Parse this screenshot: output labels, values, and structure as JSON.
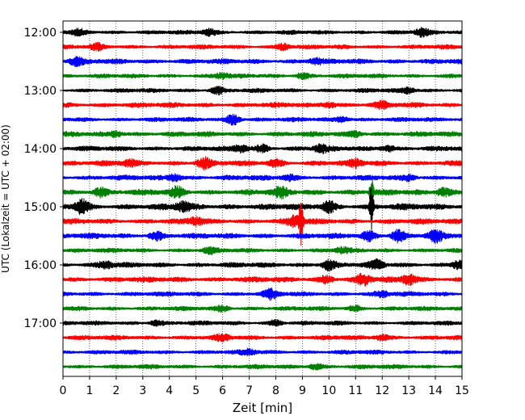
{
  "chart_data": {
    "type": "line",
    "title": "",
    "xlabel": "Zeit  [min]",
    "ylabel": "UTC (Lokalzeit = UTC + 02:00)",
    "xlim": [
      0,
      15
    ],
    "x_ticks": [
      0,
      1,
      2,
      3,
      4,
      5,
      6,
      7,
      8,
      9,
      10,
      11,
      12,
      13,
      14,
      15
    ],
    "y_tick_labels": [
      "12:00",
      "13:00",
      "14:00",
      "15:00",
      "16:00",
      "17:00"
    ],
    "grid": "vertical dotted lines at each minute",
    "trace_interval_minutes": 15,
    "trace_color_cycle": [
      "#000000",
      "#ff0000",
      "#0000ff",
      "#008000"
    ],
    "traces": [
      {
        "start": "12:00",
        "color": "#000000",
        "amplitude": 2.2,
        "bursts": [
          {
            "x": 0.6,
            "amp": 3
          },
          {
            "x": 5.5,
            "amp": 3.5
          },
          {
            "x": 13.5,
            "amp": 4
          }
        ]
      },
      {
        "start": "12:15",
        "color": "#ff0000",
        "amplitude": 2.2,
        "bursts": [
          {
            "x": 1.3,
            "amp": 3
          },
          {
            "x": 8.3,
            "amp": 3.5
          }
        ]
      },
      {
        "start": "12:30",
        "color": "#0000ff",
        "amplitude": 2.6,
        "bursts": [
          {
            "x": 0.5,
            "amp": 4
          },
          {
            "x": 9.5,
            "amp": 3
          }
        ]
      },
      {
        "start": "12:45",
        "color": "#008000",
        "amplitude": 2.2,
        "bursts": [
          {
            "x": 6.0,
            "amp": 3
          },
          {
            "x": 9.0,
            "amp": 3.5
          }
        ]
      },
      {
        "start": "13:00",
        "color": "#000000",
        "amplitude": 2.2,
        "bursts": [
          {
            "x": 5.8,
            "amp": 4
          },
          {
            "x": 13.0,
            "amp": 3
          }
        ]
      },
      {
        "start": "13:15",
        "color": "#ff0000",
        "amplitude": 2.6,
        "bursts": [
          {
            "x": 10.0,
            "amp": 3.5
          },
          {
            "x": 12.0,
            "amp": 3
          }
        ]
      },
      {
        "start": "13:30",
        "color": "#0000ff",
        "amplitude": 2.2,
        "bursts": [
          {
            "x": 6.4,
            "amp": 6
          },
          {
            "x": 10.5,
            "amp": 3
          }
        ]
      },
      {
        "start": "13:45",
        "color": "#008000",
        "amplitude": 2.6,
        "bursts": [
          {
            "x": 2.0,
            "amp": 3
          },
          {
            "x": 11.0,
            "amp": 3
          }
        ]
      },
      {
        "start": "14:00",
        "color": "#000000",
        "amplitude": 2.6,
        "bursts": [
          {
            "x": 6.7,
            "amp": 4
          },
          {
            "x": 7.5,
            "amp": 4
          },
          {
            "x": 9.7,
            "amp": 4
          },
          {
            "x": 12.2,
            "amp": 3.5
          }
        ]
      },
      {
        "start": "14:15",
        "color": "#ff0000",
        "amplitude": 2.8,
        "bursts": [
          {
            "x": 2.5,
            "amp": 3
          },
          {
            "x": 5.3,
            "amp": 6
          },
          {
            "x": 8.0,
            "amp": 4
          },
          {
            "x": 11.0,
            "amp": 3.5
          }
        ]
      },
      {
        "start": "14:30",
        "color": "#0000ff",
        "amplitude": 2.6,
        "bursts": [
          {
            "x": 4.2,
            "amp": 4
          },
          {
            "x": 8.5,
            "amp": 3
          },
          {
            "x": 13.0,
            "amp": 3
          }
        ]
      },
      {
        "start": "14:45",
        "color": "#008000",
        "amplitude": 3.0,
        "bursts": [
          {
            "x": 1.4,
            "amp": 5
          },
          {
            "x": 4.3,
            "amp": 5
          },
          {
            "x": 8.2,
            "amp": 5
          },
          {
            "x": 11.6,
            "amp": 18
          },
          {
            "x": 14.3,
            "amp": 5
          }
        ]
      },
      {
        "start": "15:00",
        "color": "#000000",
        "amplitude": 3.2,
        "bursts": [
          {
            "x": 0.7,
            "amp": 8
          },
          {
            "x": 4.5,
            "amp": 5
          },
          {
            "x": 10.0,
            "amp": 6
          },
          {
            "x": 11.6,
            "amp": 26
          }
        ]
      },
      {
        "start": "15:15",
        "color": "#ff0000",
        "amplitude": 2.8,
        "bursts": [
          {
            "x": 5.0,
            "amp": 4
          },
          {
            "x": 8.7,
            "amp": 6
          },
          {
            "x": 8.95,
            "amp": 28
          }
        ]
      },
      {
        "start": "15:30",
        "color": "#0000ff",
        "amplitude": 2.8,
        "bursts": [
          {
            "x": 3.5,
            "amp": 5
          },
          {
            "x": 11.5,
            "amp": 5
          },
          {
            "x": 12.6,
            "amp": 7
          },
          {
            "x": 14.0,
            "amp": 6
          }
        ]
      },
      {
        "start": "15:45",
        "color": "#008000",
        "amplitude": 2.2,
        "bursts": [
          {
            "x": 5.5,
            "amp": 3
          },
          {
            "x": 10.5,
            "amp": 3
          }
        ]
      },
      {
        "start": "16:00",
        "color": "#000000",
        "amplitude": 2.6,
        "bursts": [
          {
            "x": 1.6,
            "amp": 4
          },
          {
            "x": 10.0,
            "amp": 6
          },
          {
            "x": 11.8,
            "amp": 5
          },
          {
            "x": 14.9,
            "amp": 5
          }
        ]
      },
      {
        "start": "16:15",
        "color": "#ff0000",
        "amplitude": 2.8,
        "bursts": [
          {
            "x": 9.9,
            "amp": 4
          },
          {
            "x": 11.3,
            "amp": 6
          },
          {
            "x": 13.0,
            "amp": 6
          }
        ]
      },
      {
        "start": "16:30",
        "color": "#0000ff",
        "amplitude": 2.4,
        "bursts": [
          {
            "x": 7.8,
            "amp": 5
          },
          {
            "x": 12.0,
            "amp": 3
          }
        ]
      },
      {
        "start": "16:45",
        "color": "#008000",
        "amplitude": 2.2,
        "bursts": [
          {
            "x": 6.0,
            "amp": 3
          },
          {
            "x": 11.0,
            "amp": 3
          }
        ]
      },
      {
        "start": "17:00",
        "color": "#000000",
        "amplitude": 2.2,
        "bursts": [
          {
            "x": 3.5,
            "amp": 3
          },
          {
            "x": 8.0,
            "amp": 3
          }
        ]
      },
      {
        "start": "17:15",
        "color": "#ff0000",
        "amplitude": 2.4,
        "bursts": [
          {
            "x": 6.0,
            "amp": 3
          },
          {
            "x": 12.0,
            "amp": 3
          }
        ]
      },
      {
        "start": "17:30",
        "color": "#0000ff",
        "amplitude": 2.2,
        "bursts": [
          {
            "x": 7.0,
            "amp": 3
          }
        ]
      },
      {
        "start": "17:45",
        "color": "#008000",
        "amplitude": 2.2,
        "bursts": [
          {
            "x": 9.5,
            "amp": 3
          }
        ]
      }
    ]
  }
}
